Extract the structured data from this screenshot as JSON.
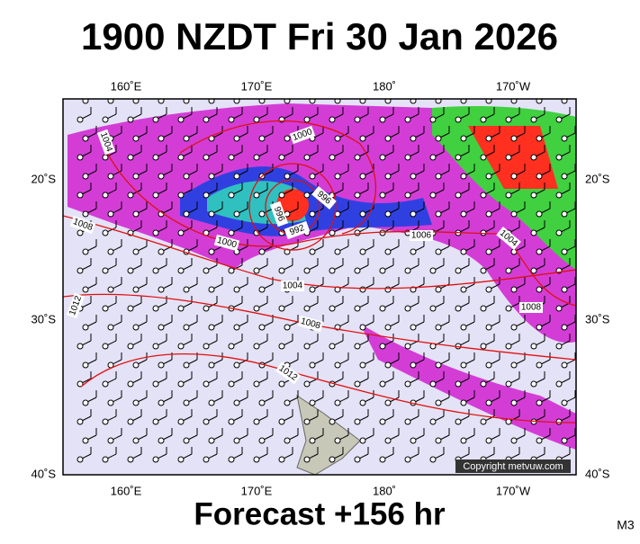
{
  "title": "1900 NZDT Fri 30 Jan 2026",
  "footer": "Forecast +156 hr",
  "model": "M3",
  "copyright": "Copyright metvuw.com",
  "lon_labels": [
    "160˚E",
    "170˚E",
    "180˚",
    "170˚W"
  ],
  "lat_labels": [
    "20˚S",
    "30˚S",
    "40˚S"
  ],
  "isobar_labels": [
    1004,
    1000,
    996,
    992,
    996,
    1008,
    1000,
    1006,
    1004,
    1004,
    1008,
    1012,
    1012,
    1008
  ]
}
